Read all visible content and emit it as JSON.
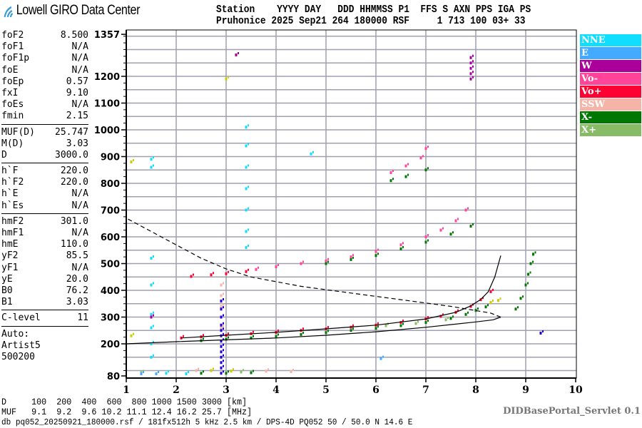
{
  "header": {
    "logo_text": "Lowell GIRO Data Center",
    "line1": "Station    YYYY DAY   DDD HHMMSS P1  FFS S AXN PPS IGA PS",
    "line2": "Pruhonice 2025 Sep21 264 180000 RSF     1 713 100 03+ 33"
  },
  "params": {
    "group1": [
      {
        "name": "foF2",
        "value": "8.500"
      },
      {
        "name": "foF1",
        "value": "N/A"
      },
      {
        "name": "foF1p",
        "value": "N/A"
      },
      {
        "name": "foE",
        "value": "N/A"
      },
      {
        "name": "foEp",
        "value": "0.57"
      },
      {
        "name": "fxI",
        "value": "9.10"
      },
      {
        "name": "foEs",
        "value": "N/A"
      },
      {
        "name": "fmin",
        "value": "2.15"
      }
    ],
    "group2": [
      {
        "name": "MUF(D)",
        "value": "25.747"
      },
      {
        "name": "M(D)",
        "value": "3.03"
      },
      {
        "name": "D",
        "value": "3000.0"
      }
    ],
    "group3": [
      {
        "name": "h`F",
        "value": "220.0"
      },
      {
        "name": "h`F2",
        "value": "220.0"
      },
      {
        "name": "h`E",
        "value": "N/A"
      },
      {
        "name": "h`Es",
        "value": "N/A"
      }
    ],
    "group4": [
      {
        "name": "hmF2",
        "value": "301.0"
      },
      {
        "name": "hmF1",
        "value": "N/A"
      },
      {
        "name": "hmE",
        "value": "110.0"
      },
      {
        "name": "yF2",
        "value": "85.5"
      },
      {
        "name": "yF1",
        "value": "N/A"
      },
      {
        "name": "yE",
        "value": "20.0"
      },
      {
        "name": "B0",
        "value": "76.2"
      },
      {
        "name": "B1",
        "value": "3.03"
      }
    ],
    "group5": [
      {
        "name": "C-level",
        "value": "11"
      }
    ],
    "auto": [
      "Auto:",
      "Artist5",
      "500200"
    ]
  },
  "legend": [
    {
      "label": "NNE",
      "color": "#11ddff"
    },
    {
      "label": "E",
      "color": "#44aaff"
    },
    {
      "label": "W",
      "color": "#aa0099"
    },
    {
      "label": "Vo-",
      "color": "#ff4499"
    },
    {
      "label": "Vo+",
      "color": "#ff0033"
    },
    {
      "label": "SSW",
      "color": "#f4b4a8"
    },
    {
      "label": "X-",
      "color": "#007700"
    },
    {
      "label": "X+",
      "color": "#88bb66"
    }
  ],
  "chart_data": {
    "type": "scatter",
    "xlim": [
      1,
      10
    ],
    "ylim": [
      80,
      1357
    ],
    "x_ticks": [
      "1",
      "2",
      "3",
      "4",
      "5",
      "6",
      "7",
      "8",
      "9",
      "10"
    ],
    "y_ticks": [
      "80",
      "200",
      "300",
      "400",
      "500",
      "600",
      "700",
      "800",
      "900",
      "1000",
      "1100",
      "1200",
      "1357"
    ],
    "grid": true,
    "legend_placement": "right",
    "series": [
      {
        "name": "Vo+",
        "color": "#ff0033",
        "points": [
          [
            2.1,
            222
          ],
          [
            2.5,
            226
          ],
          [
            3,
            232
          ],
          [
            3.5,
            238
          ],
          [
            4,
            243
          ],
          [
            4.5,
            250
          ],
          [
            5,
            256
          ],
          [
            5.5,
            262
          ],
          [
            6,
            270
          ],
          [
            6.5,
            280
          ],
          [
            7,
            293
          ],
          [
            7.3,
            303
          ],
          [
            7.6,
            318
          ],
          [
            7.9,
            340
          ],
          [
            8.1,
            365
          ],
          [
            8.3,
            395
          ],
          [
            2.3,
            452
          ],
          [
            2.7,
            458
          ],
          [
            3,
            462
          ],
          [
            3.4,
            470
          ]
        ]
      },
      {
        "name": "Vo-",
        "color": "#ff4499",
        "points": [
          [
            3.6,
            478
          ],
          [
            4,
            488
          ],
          [
            4.5,
            500
          ],
          [
            5,
            510
          ],
          [
            5.5,
            525
          ],
          [
            6,
            545
          ],
          [
            6.5,
            570
          ],
          [
            7,
            600
          ],
          [
            7.3,
            625
          ],
          [
            7.6,
            660
          ],
          [
            7.8,
            700
          ],
          [
            6.3,
            840
          ],
          [
            6.6,
            865
          ],
          [
            6.9,
            895
          ],
          [
            7,
            930
          ]
        ]
      },
      {
        "name": "X-",
        "color": "#007700",
        "points": [
          [
            2.5,
            212
          ],
          [
            3,
            217
          ],
          [
            3.5,
            222
          ],
          [
            4,
            228
          ],
          [
            4.5,
            235
          ],
          [
            5,
            242
          ],
          [
            5.5,
            250
          ],
          [
            6,
            258
          ],
          [
            6.5,
            268
          ],
          [
            7,
            280
          ],
          [
            7.5,
            295
          ],
          [
            7.8,
            310
          ],
          [
            8,
            325
          ],
          [
            8.2,
            338
          ],
          [
            8.8,
            330
          ],
          [
            8.9,
            370
          ],
          [
            9,
            420
          ],
          [
            9.05,
            460
          ],
          [
            9.1,
            500
          ],
          [
            9.15,
            535
          ],
          [
            5,
            500
          ],
          [
            5.5,
            515
          ],
          [
            6,
            530
          ],
          [
            6.5,
            555
          ],
          [
            7,
            580
          ],
          [
            7.5,
            610
          ],
          [
            7.9,
            640
          ],
          [
            6.3,
            810
          ],
          [
            6.6,
            825
          ],
          [
            7,
            850
          ],
          [
            2.5,
            90
          ],
          [
            3,
            90
          ],
          [
            3.5,
            92
          ]
        ]
      },
      {
        "name": "X+",
        "color": "#88bb66",
        "points": [
          [
            6.2,
            268
          ],
          [
            6.8,
            276
          ],
          [
            7.4,
            290
          ],
          [
            1.3,
            92
          ],
          [
            3.3,
            95
          ]
        ]
      },
      {
        "name": "NNE",
        "color": "#11ddff",
        "points": [
          [
            1.5,
            150
          ],
          [
            1.5,
            200
          ],
          [
            1.5,
            260
          ],
          [
            1.5,
            310
          ],
          [
            1.5,
            420
          ],
          [
            1.5,
            520
          ],
          [
            1.5,
            860
          ],
          [
            1.5,
            890
          ],
          [
            3.4,
            560
          ],
          [
            3.4,
            620
          ],
          [
            3.4,
            700
          ],
          [
            3.4,
            780
          ],
          [
            3.4,
            860
          ],
          [
            3.4,
            940
          ],
          [
            3.4,
            1010
          ],
          [
            4.7,
            910
          ],
          [
            1.8,
            90
          ],
          [
            2.2,
            88
          ]
        ]
      },
      {
        "name": "E",
        "color": "#44aaff",
        "points": [
          [
            1.3,
            88
          ],
          [
            1.6,
            88
          ],
          [
            7.9,
            1270
          ],
          [
            6.1,
            145
          ]
        ]
      },
      {
        "name": "W",
        "color": "#aa0099",
        "points": [
          [
            1.5,
            300
          ],
          [
            7.9,
            1190
          ],
          [
            7.9,
            1210
          ],
          [
            7.9,
            1230
          ],
          [
            7.9,
            1250
          ],
          [
            7.9,
            1270
          ],
          [
            3.2,
            1280
          ]
        ]
      },
      {
        "name": "SSW",
        "color": "#f4b4a8",
        "points": [
          [
            2.9,
            260
          ],
          [
            2.9,
            300
          ],
          [
            2.9,
            340
          ],
          [
            2.9,
            380
          ],
          [
            2.9,
            420
          ],
          [
            2.4,
            100
          ],
          [
            3.8,
            98
          ],
          [
            4.3,
            96
          ]
        ]
      },
      {
        "name": "other",
        "color": "#2200dd",
        "points": [
          [
            2.9,
            90
          ],
          [
            2.9,
            110
          ],
          [
            2.9,
            130
          ],
          [
            2.9,
            150
          ],
          [
            2.9,
            170
          ],
          [
            2.9,
            190
          ],
          [
            2.9,
            210
          ],
          [
            2.9,
            230
          ],
          [
            2.9,
            250
          ],
          [
            2.9,
            270
          ],
          [
            2.9,
            300
          ],
          [
            2.9,
            330
          ],
          [
            2.9,
            360
          ],
          [
            9.3,
            240
          ]
        ]
      },
      {
        "name": "other2",
        "color": "#cccc00",
        "points": [
          [
            1.1,
            230
          ],
          [
            1.1,
            880
          ],
          [
            2.7,
            100
          ],
          [
            3.1,
            98
          ],
          [
            8.3,
            355
          ],
          [
            8.45,
            362
          ],
          [
            3.0,
            1190
          ]
        ]
      }
    ],
    "curves": [
      {
        "style": "solid",
        "points": [
          [
            1,
            200
          ],
          [
            2,
            208
          ],
          [
            3,
            215
          ],
          [
            4,
            222
          ],
          [
            5,
            232
          ],
          [
            6,
            245
          ],
          [
            7,
            262
          ],
          [
            8,
            282
          ],
          [
            8.35,
            290
          ],
          [
            8.5,
            300
          ]
        ]
      },
      {
        "style": "dashed",
        "points": [
          [
            8.5,
            300
          ],
          [
            8.3,
            315
          ],
          [
            7.5,
            340
          ],
          [
            6.5,
            365
          ],
          [
            5.5,
            390
          ],
          [
            4.5,
            415
          ],
          [
            3.5,
            450
          ],
          [
            3,
            480
          ],
          [
            2.5,
            520
          ],
          [
            2,
            570
          ],
          [
            1.5,
            620
          ],
          [
            1,
            670
          ]
        ]
      },
      {
        "style": "solid",
        "points": [
          [
            2.1,
            222
          ],
          [
            3,
            232
          ],
          [
            4,
            243
          ],
          [
            5,
            256
          ],
          [
            6,
            270
          ],
          [
            7,
            293
          ],
          [
            7.6,
            318
          ],
          [
            7.9,
            342
          ],
          [
            8.1,
            366
          ],
          [
            8.25,
            395
          ],
          [
            8.38,
            450
          ],
          [
            8.5,
            530
          ]
        ]
      }
    ]
  },
  "bottom": {
    "d_line": "D     100  200  400  600  800 1000 1500 3000 [km]",
    "muf_line": "MUF   9.1  9.2  9.6 10.2 11.1 12.4 16.2 25.7 [MHz]",
    "footer": "db pq052_20250921_180000.rsf / 181fx512h 5 kHz 2.5 km / DPS-4D PQ052 50 / 50.0 N 14.6 E",
    "servlet": "DIDBasePortal_Servlet 0.1"
  }
}
